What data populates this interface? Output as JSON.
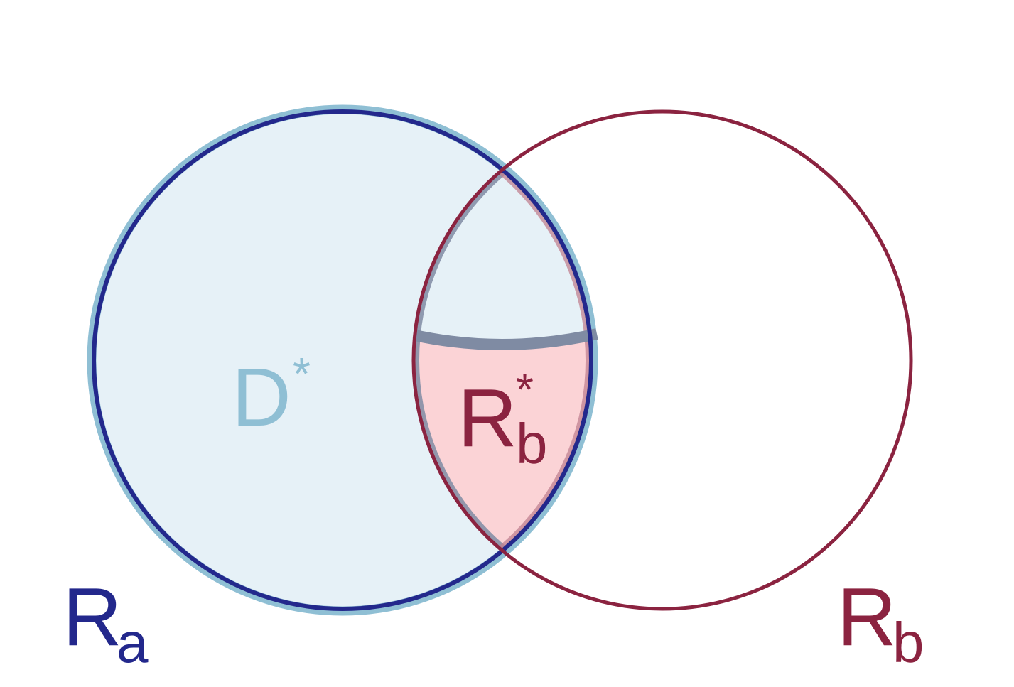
{
  "colors": {
    "ra_stroke": "#23288c",
    "ra_halo": "#8fbfd4",
    "ra_fill": "#e6f1f7",
    "rb_stroke": "#8b2340",
    "rb_star_fill": "#fbd3d6",
    "d_star_text": "#8fbfd4",
    "boundary": "#7f8ba3",
    "background": "#ffffff"
  },
  "labels": {
    "ra": {
      "main": "R",
      "sub": "a"
    },
    "rb": {
      "main": "R",
      "sub": "b"
    },
    "d_star": {
      "main": "D",
      "sup": "*"
    },
    "rb_star": {
      "main": "R",
      "sub": "b",
      "sup": "*"
    }
  }
}
